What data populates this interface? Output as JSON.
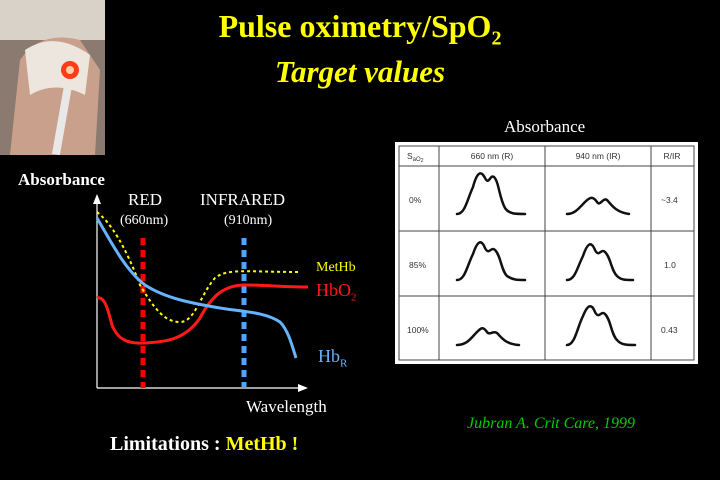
{
  "slide": {
    "title": "Pulse oximetry/SpO",
    "title_sub": "2",
    "subtitle": "Target values",
    "citation": "Jubran A. Crit Care, 1999",
    "limitations_prefix": "Limitations : ",
    "limitations_highlight": "MetHb !"
  },
  "left_chart": {
    "y_label": "Absorbance",
    "x_label": "Wavelength",
    "red_label": "RED",
    "red_wavelength": "(660nm)",
    "infrared_label": "INFRARED",
    "infrared_wavelength": "(910nm)",
    "curves": {
      "methb": "MetHb",
      "hbo2": "HbO",
      "hbo2_sub": "2",
      "hbr": "Hb",
      "hbr_sub": "R"
    },
    "colors": {
      "methb": "#ffff00",
      "hbo2": "#ff1a1a",
      "hbr": "#66b3ff",
      "red_line": "#ff0000",
      "infrared_line": "#4da6ff"
    }
  },
  "right_table": {
    "label": "Absorbance",
    "headers": {
      "sao2": "S",
      "sao2_sub": "aO",
      "sao2_sub2": "2",
      "col660": "660 nm (R)",
      "col940": "940 nm (IR)",
      "ratio": "R/IR"
    },
    "rows": [
      {
        "sao2": "0%",
        "ratio": "~3.4"
      },
      {
        "sao2": "85%",
        "ratio": "1.0"
      },
      {
        "sao2": "100%",
        "ratio": "0.43"
      }
    ]
  }
}
